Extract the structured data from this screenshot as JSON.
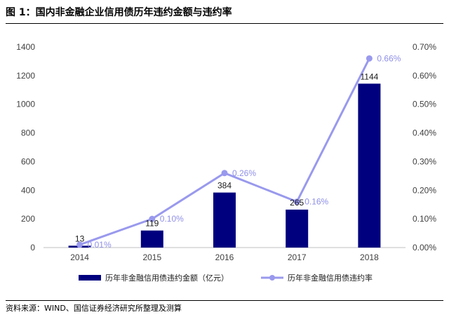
{
  "header": {
    "title": "图 1：国内非金融企业信用债历年违约金额与违约率"
  },
  "footer": {
    "source": "资料来源：WIND、国信证券经济研究所整理及测算"
  },
  "colors": {
    "bar": "#00007f",
    "line": "#9999ee",
    "rate_label": "#8f8fe8"
  },
  "chart_data": {
    "type": "bar",
    "categories": [
      "2014",
      "2015",
      "2016",
      "2017",
      "2018"
    ],
    "series": [
      {
        "name": "历年非金融信用债违约金额（亿元）",
        "type": "bar",
        "axis": "left",
        "values": [
          13,
          119,
          384,
          265,
          1144
        ],
        "labels": [
          "13",
          "119",
          "384",
          "265",
          "1144"
        ]
      },
      {
        "name": "历年非金融信用债违约率",
        "type": "line",
        "axis": "right",
        "values": [
          0.0001,
          0.001,
          0.0026,
          0.0016,
          0.0066
        ],
        "labels": [
          "0.01%",
          "0.10%",
          "0.26%",
          "0.16%",
          "0.66%"
        ]
      }
    ],
    "y_left": {
      "range": [
        0,
        1400
      ],
      "ticks": [
        "0",
        "200",
        "400",
        "600",
        "800",
        "1000",
        "1200",
        "1400"
      ]
    },
    "y_right": {
      "range": [
        0,
        0.007
      ],
      "ticks": [
        "0.00%",
        "0.10%",
        "0.20%",
        "0.30%",
        "0.40%",
        "0.50%",
        "0.60%",
        "0.70%"
      ]
    },
    "grid": false,
    "legend_position": "bottom"
  }
}
